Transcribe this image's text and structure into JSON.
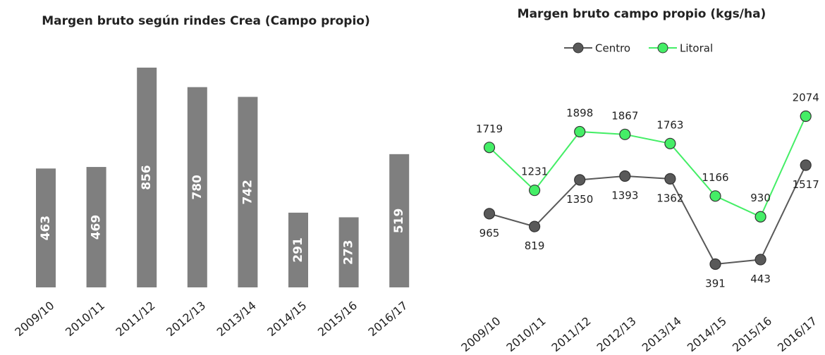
{
  "chart_data": [
    {
      "type": "bar",
      "title": "Margen bruto  según rindes Crea (Campo propio)",
      "categories": [
        "2009/10",
        "2010/11",
        "2011/12",
        "2012/13",
        "2013/14",
        "2014/15",
        "2015/16",
        "2016/17"
      ],
      "values": [
        463,
        469,
        856,
        780,
        742,
        291,
        273,
        519
      ],
      "color": "#7f7f7f"
    },
    {
      "type": "line",
      "title": "Margen bruto  campo propio (kgs/ha)",
      "categories": [
        "2009/10",
        "2010/11",
        "2011/12",
        "2012/13",
        "2013/14",
        "2014/15",
        "2015/16",
        "2016/17"
      ],
      "series": [
        {
          "name": "Centro",
          "color": "#595959",
          "values": [
            965,
            819,
            1350,
            1393,
            1362,
            391,
            443,
            1517
          ]
        },
        {
          "name": "Litoral",
          "color": "#44ee66",
          "values": [
            1719,
            1231,
            1898,
            1867,
            1763,
            1166,
            930,
            2074
          ]
        }
      ]
    }
  ]
}
